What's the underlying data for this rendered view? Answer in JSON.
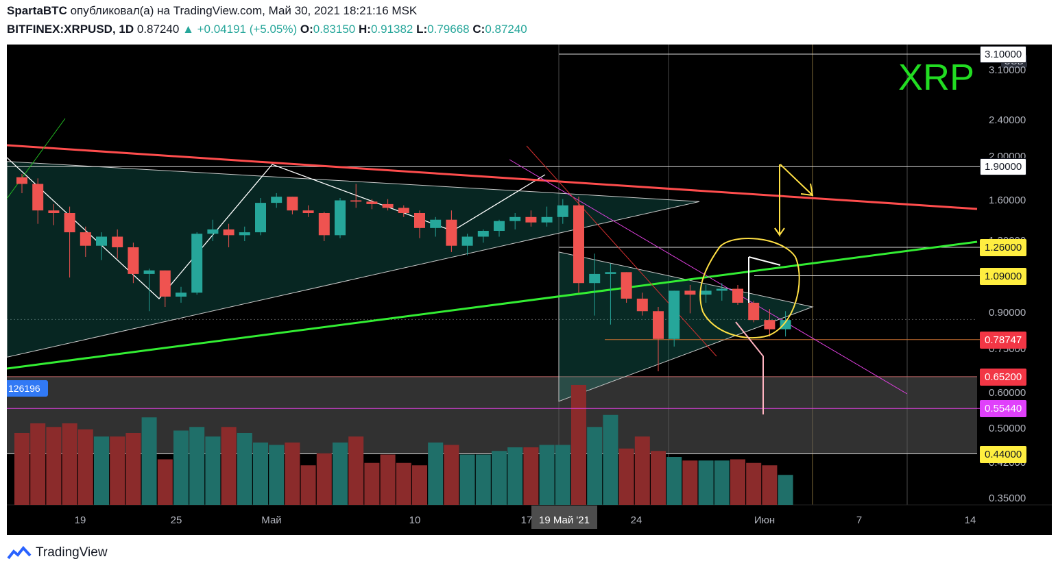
{
  "header": {
    "author": "SpartaBTC",
    "published_text": "опубликовал(а) на TradingView.com, Май 30, 2021 18:21:16 MSK",
    "symbol": "BITFINEX:XRPUSD, 1D",
    "last": "0.87240",
    "change": "▲ +0.04191 (+5.05%)",
    "o_label": "O:",
    "o_val": "0.83150",
    "h_label": "H:",
    "h_val": "0.91382",
    "l_label": "L:",
    "l_val": "0.79668",
    "c_label": "C:",
    "c_val": "0.87240"
  },
  "chart_title": "XRP",
  "currency_badge": "USD",
  "volume_label": "126196",
  "footer_brand": "TradingView",
  "colors": {
    "up": "#26a69a",
    "down": "#ef5350",
    "resistance": "#ff4d4d",
    "support": "#33ee33",
    "xrp": "#22dd22",
    "annot_yellow": "#ffe045",
    "volume_up": "#1f6f69",
    "volume_down": "#8b2b2b"
  },
  "price_axis": {
    "ticks": [
      "3.10000",
      "2.40000",
      "2.00000",
      "1.60000",
      "1.30000",
      "0.90000",
      "0.75000",
      "0.60000",
      "0.50000",
      "0.42000",
      "0.35000"
    ],
    "labels": [
      {
        "text": "3.10000",
        "style": "white"
      },
      {
        "text": "1.90000",
        "style": "white"
      },
      {
        "text": "1.26000",
        "style": "yellow"
      },
      {
        "text": "1.09000",
        "style": "yellow"
      },
      {
        "text": "0.78747",
        "style": "red"
      },
      {
        "text": "0.65200",
        "style": "red"
      },
      {
        "text": "0.55440",
        "style": "magenta"
      },
      {
        "text": "0.44000",
        "style": "yellow"
      }
    ]
  },
  "time_axis": {
    "labels": [
      "19",
      "25",
      "Май",
      "10",
      "17",
      "19 Май '21",
      "24",
      "Июн",
      "7",
      "14"
    ]
  },
  "chart_data": {
    "type": "candlestick",
    "title": "XRP",
    "symbol": "BITFINEX:XRPUSD",
    "interval": "1D",
    "y_scale": "log",
    "ylim": [
      0.33,
      3.3
    ],
    "x_start": "2021-04-15",
    "x_range_days": 62,
    "series": [
      {
        "name": "XRPUSD",
        "ohlc": [
          [
            1.8,
            1.83,
            1.66,
            1.74
          ],
          [
            1.74,
            1.79,
            1.42,
            1.52
          ],
          [
            1.52,
            1.57,
            1.41,
            1.5
          ],
          [
            1.5,
            1.55,
            1.08,
            1.36
          ],
          [
            1.36,
            1.4,
            1.2,
            1.27
          ],
          [
            1.27,
            1.36,
            1.18,
            1.33
          ],
          [
            1.33,
            1.38,
            1.19,
            1.26
          ],
          [
            1.26,
            1.29,
            1.05,
            1.1
          ],
          [
            1.1,
            1.13,
            0.91,
            1.12
          ],
          [
            1.12,
            1.12,
            0.93,
            0.98
          ],
          [
            0.98,
            1.03,
            0.95,
            1.0
          ],
          [
            1.0,
            1.36,
            0.99,
            1.35
          ],
          [
            1.35,
            1.45,
            1.3,
            1.38
          ],
          [
            1.38,
            1.42,
            1.26,
            1.34
          ],
          [
            1.34,
            1.4,
            1.3,
            1.36
          ],
          [
            1.36,
            1.62,
            1.34,
            1.58
          ],
          [
            1.58,
            1.66,
            1.54,
            1.63
          ],
          [
            1.63,
            1.63,
            1.49,
            1.52
          ],
          [
            1.52,
            1.56,
            1.47,
            1.5
          ],
          [
            1.5,
            1.51,
            1.3,
            1.34
          ],
          [
            1.34,
            1.62,
            1.32,
            1.6
          ],
          [
            1.6,
            1.74,
            1.54,
            1.59
          ],
          [
            1.59,
            1.61,
            1.53,
            1.57
          ],
          [
            1.57,
            1.61,
            1.52,
            1.54
          ],
          [
            1.54,
            1.56,
            1.47,
            1.5
          ],
          [
            1.5,
            1.52,
            1.32,
            1.39
          ],
          [
            1.39,
            1.47,
            1.33,
            1.45
          ],
          [
            1.45,
            1.52,
            1.23,
            1.27
          ],
          [
            1.27,
            1.35,
            1.21,
            1.33
          ],
          [
            1.33,
            1.38,
            1.29,
            1.37
          ],
          [
            1.37,
            1.45,
            1.33,
            1.44
          ],
          [
            1.44,
            1.5,
            1.38,
            1.47
          ],
          [
            1.47,
            1.52,
            1.4,
            1.43
          ],
          [
            1.43,
            1.55,
            1.4,
            1.47
          ],
          [
            1.47,
            1.61,
            1.42,
            1.56
          ],
          [
            1.56,
            1.63,
            1.0,
            1.05
          ],
          [
            1.05,
            1.22,
            0.89,
            1.1
          ],
          [
            1.1,
            1.16,
            0.85,
            1.11
          ],
          [
            1.11,
            1.11,
            0.95,
            0.97
          ],
          [
            0.97,
            1.0,
            0.89,
            0.91
          ],
          [
            0.91,
            0.93,
            0.67,
            0.79
          ],
          [
            0.79,
            1.01,
            0.76,
            1.01
          ],
          [
            1.01,
            1.04,
            0.9,
            0.99
          ],
          [
            0.99,
            1.04,
            0.95,
            1.01
          ],
          [
            1.01,
            1.05,
            0.96,
            1.02
          ],
          [
            1.02,
            1.04,
            0.94,
            0.95
          ],
          [
            0.95,
            0.96,
            0.86,
            0.87
          ],
          [
            0.87,
            0.92,
            0.8,
            0.83
          ],
          [
            0.83,
            0.91,
            0.8,
            0.87
          ]
        ]
      },
      {
        "name": "Volume",
        "values": [
          60,
          68,
          65,
          68,
          63,
          57,
          57,
          60,
          73,
          38,
          62,
          65,
          57,
          65,
          60,
          52,
          50,
          52,
          33,
          43,
          52,
          57,
          35,
          42,
          35,
          33,
          52,
          50,
          42,
          42,
          45,
          48,
          48,
          50,
          50,
          100,
          65,
          75,
          47,
          57,
          45,
          40,
          37,
          37,
          37,
          38,
          35,
          33,
          25
        ]
      }
    ],
    "horizontal_levels": [
      3.1,
      1.9,
      1.26,
      1.09,
      0.78747,
      0.652,
      0.5544,
      0.44
    ],
    "support_zone": [
      0.44,
      0.652
    ],
    "annotations": [
      "XRP",
      "126196"
    ]
  }
}
